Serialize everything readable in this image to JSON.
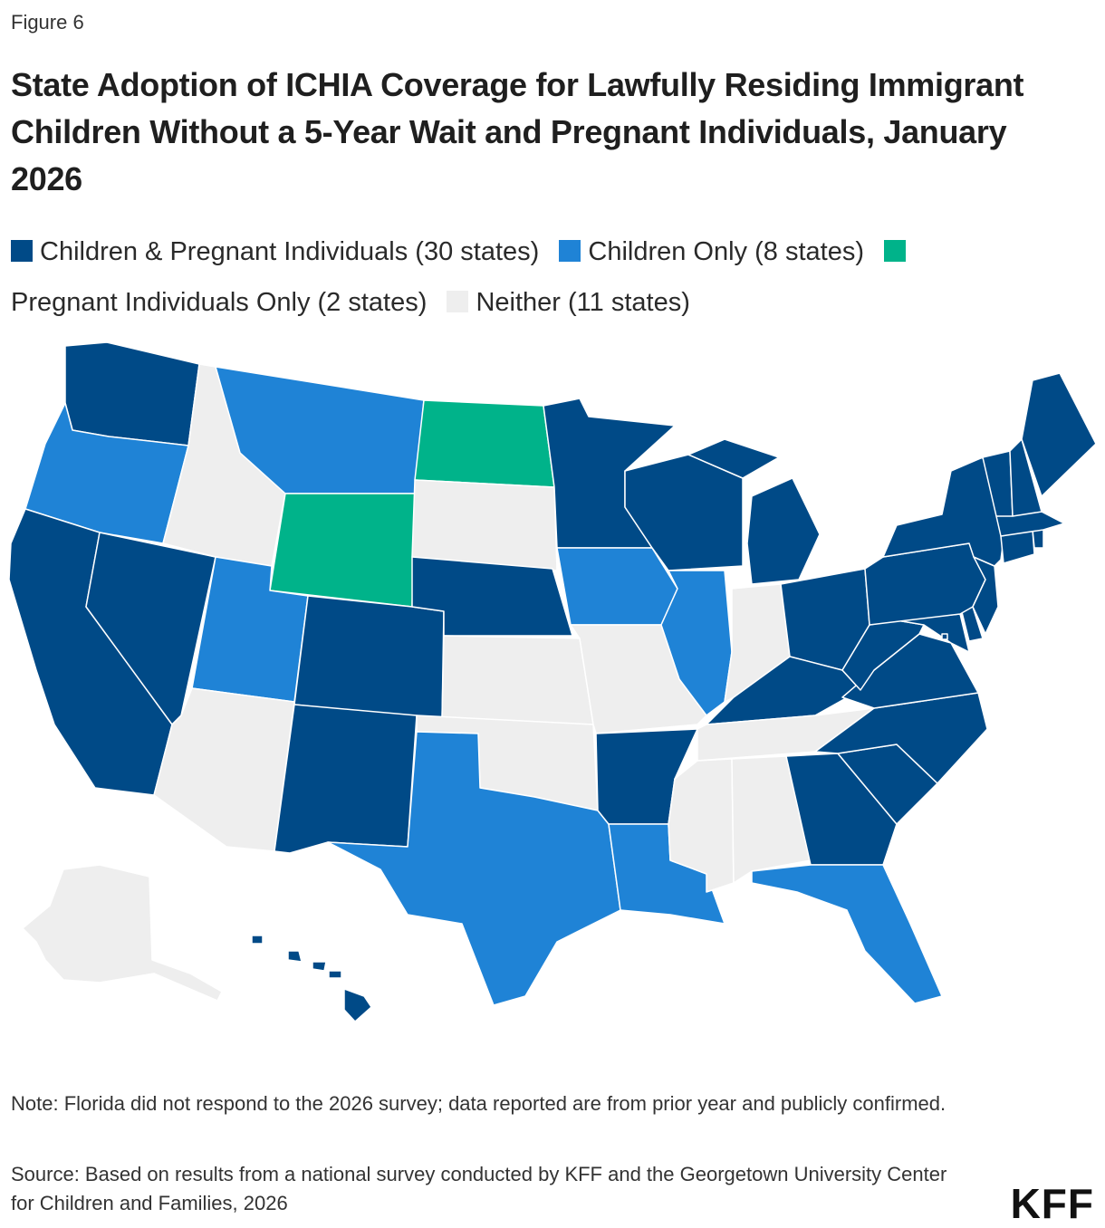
{
  "figure_label": "Figure 6",
  "title": "State Adoption of ICHIA Coverage for Lawfully Residing Immigrant Children Without a 5-Year Wait and Pregnant Individuals, January 2026",
  "legend": [
    {
      "label": "Children & Pregnant Individuals (30 states)",
      "color": "#004a87",
      "key": "both"
    },
    {
      "label": "Children Only (8 states)",
      "color": "#1f83d6",
      "key": "children"
    },
    {
      "label": "Pregnant Individuals Only (2 states)",
      "color": "#00b38a",
      "key": "pregnant"
    },
    {
      "label": "Neither (11 states)",
      "color": "#eeeeee",
      "key": "neither"
    }
  ],
  "map": {
    "states": {
      "WA": "both",
      "OR": "children",
      "CA": "both",
      "NV": "both",
      "ID": "neither",
      "MT": "children",
      "WY": "pregnant",
      "UT": "children",
      "AZ": "neither",
      "CO": "both",
      "NM": "both",
      "ND": "pregnant",
      "SD": "neither",
      "NE": "both",
      "KS": "neither",
      "OK": "neither",
      "TX": "children",
      "MN": "both",
      "IA": "children",
      "MO": "neither",
      "AR": "both",
      "LA": "children",
      "WI": "both",
      "IL": "children",
      "MI": "both",
      "IN": "neither",
      "OH": "both",
      "KY": "both",
      "TN": "neither",
      "MS": "neither",
      "AL": "neither",
      "GA": "both",
      "FL": "children",
      "SC": "both",
      "NC": "both",
      "VA": "both",
      "WV": "both",
      "PA": "both",
      "NY": "both",
      "NJ": "both",
      "DE": "both",
      "MD": "both",
      "DC": "both",
      "CT": "both",
      "RI": "both",
      "MA": "both",
      "VT": "both",
      "NH": "both",
      "ME": "both",
      "AK": "neither",
      "HI": "both"
    }
  },
  "note": "Note: Florida did not respond to the 2026 survey; data reported are from prior year and publicly confirmed.",
  "source": "Source: Based on results from a national survey conducted by KFF and the Georgetown University Center for Children and Families, 2026",
  "logo": "KFF"
}
